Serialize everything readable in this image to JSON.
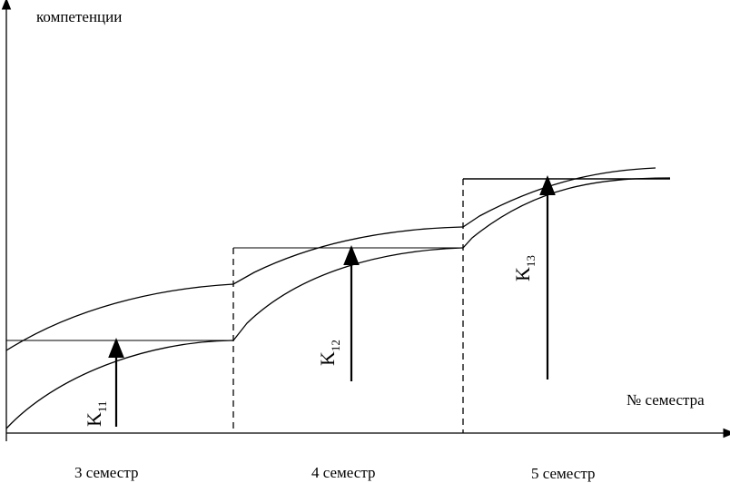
{
  "axes": {
    "y_label": "компетенции",
    "x_label": "№ семестра"
  },
  "semesters": [
    {
      "label": "3 семестр"
    },
    {
      "label": "4 семестр"
    },
    {
      "label": "5 семестр"
    }
  ],
  "vectors": [
    {
      "letter": "K",
      "sub": "11"
    },
    {
      "letter": "K",
      "sub": "12"
    },
    {
      "letter": "K",
      "sub": "13"
    }
  ]
}
